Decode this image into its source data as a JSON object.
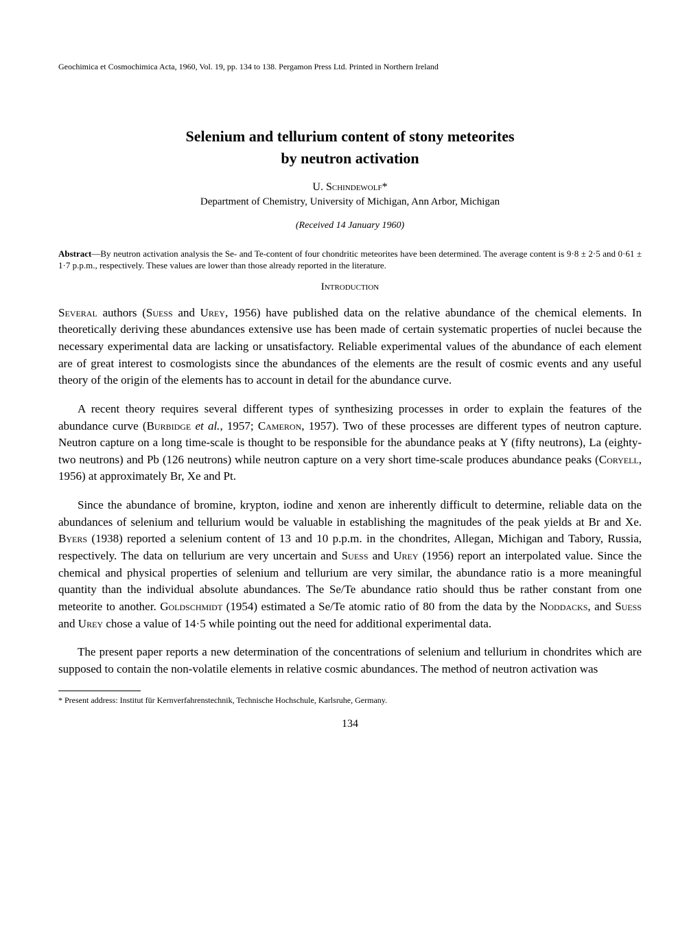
{
  "header": "Geochimica et Cosmochimica Acta, 1960, Vol. 19, pp. 134 to 138. Pergamon Press Ltd. Printed in Northern Ireland",
  "title_line1": "Selenium and tellurium content of stony meteorites",
  "title_line2": "by neutron activation",
  "author": "U. Schindewolf*",
  "affiliation": "Department of Chemistry, University of Michigan, Ann Arbor, Michigan",
  "received": "(Received 14 January 1960)",
  "abstract_label": "Abstract",
  "abstract_text": "—By neutron activation analysis the Se- and Te-content of four chondritic meteorites have been determined. The average content is 9·8 ± 2·5 and 0·61 ± 1·7 p.p.m., respectively. These values are lower than those already reported in the literature.",
  "section_intro": "Introduction",
  "para1_caps": "Several",
  "para1_rest": " authors (Suess and Urey, 1956) have published data on the relative abundance of the chemical elements. In theoretically deriving these abundances extensive use has been made of certain systematic properties of nuclei because the necessary experimental data are lacking or unsatisfactory. Reliable experimental values of the abundance of each element are of great interest to cosmologists since the abundances of the elements are the result of cosmic events and any useful theory of the origin of the elements has to account in detail for the abundance curve.",
  "para2": "A recent theory requires several different types of synthesizing processes in order to explain the features of the abundance curve (Burbidge et al., 1957; Cameron, 1957). Two of these processes are different types of neutron capture. Neutron capture on a long time-scale is thought to be responsible for the abundance peaks at Y (fifty neutrons), La (eighty-two neutrons) and Pb (126 neutrons) while neutron capture on a very short time-scale produces abundance peaks (Coryell, 1956) at approximately Br, Xe and Pt.",
  "para3": "Since the abundance of bromine, krypton, iodine and xenon are inherently difficult to determine, reliable data on the abundances of selenium and tellurium would be valuable in establishing the magnitudes of the peak yields at Br and Xe. Byers (1938) reported a selenium content of 13 and 10 p.p.m. in the chondrites, Allegan, Michigan and Tabory, Russia, respectively. The data on tellurium are very uncertain and Suess and Urey (1956) report an interpolated value. Since the chemical and physical properties of selenium and tellurium are very similar, the abundance ratio is a more meaningful quantity than the individual absolute abundances. The Se/Te abundance ratio should thus be rather constant from one meteorite to another. Goldschmidt (1954) estimated a Se/Te atomic ratio of 80 from the data by the Noddacks, and Suess and Urey chose a value of 14·5 while pointing out the need for additional experimental data.",
  "para4": "The present paper reports a new determination of the concentrations of selenium and tellurium in chondrites which are supposed to contain the non-volatile elements in relative cosmic abundances. The method of neutron activation was",
  "footnote": "* Present address: Institut für Kernverfahrenstechnik, Technische Hochschule, Karlsruhe, Germany.",
  "page_number": "134"
}
